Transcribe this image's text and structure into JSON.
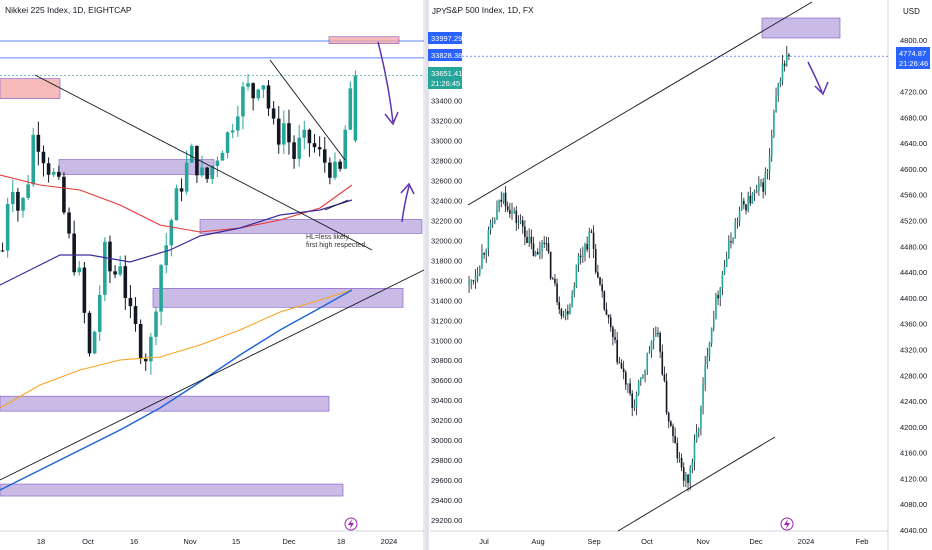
{
  "left_chart": {
    "title": "Nikkei 225 Index, 1D, EIGHTCAP",
    "currency": "JPY",
    "price_labels": [
      {
        "value": "33997.29",
        "color": "#2962ff"
      },
      {
        "value": "33828.38",
        "color": "#2962ff"
      },
      {
        "value": "33651.41",
        "color": "#26a69a"
      }
    ],
    "countdown": "21:26:45",
    "annotation": [
      "HL=less likely",
      "first high respected"
    ],
    "y_ticks": [
      "33400.00",
      "33200.00",
      "33000.00",
      "32800.00",
      "32600.00",
      "32400.00",
      "32200.00",
      "32000.00",
      "31800.00",
      "31600.00",
      "31400.00",
      "31200.00",
      "31000.00",
      "30800.00",
      "30600.00",
      "30400.00",
      "30200.00",
      "30000.00",
      "29800.00",
      "29600.00",
      "29400.00",
      "29200.00"
    ],
    "x_ticks": [
      "18",
      "Oct",
      "16",
      "Nov",
      "15",
      "Dec",
      "18",
      "2024"
    ]
  },
  "right_chart": {
    "title": "S&P 500 Index, 1D, FX",
    "currency": "USD",
    "price_label": {
      "value": "4774.87",
      "color": "#2962ff"
    },
    "countdown": "21:26:46",
    "y_ticks": [
      "4800.00",
      "4760.00",
      "4720.00",
      "4680.00",
      "4640.00",
      "4600.00",
      "4560.00",
      "4520.00",
      "4480.00",
      "4440.00",
      "4400.00",
      "4360.00",
      "4320.00",
      "4280.00",
      "4240.00",
      "4200.00",
      "4160.00",
      "4120.00",
      "4080.00",
      "4040.00"
    ],
    "x_ticks": [
      "Jul",
      "Aug",
      "Sep",
      "Oct",
      "Nov",
      "Dec",
      "2024",
      "Feb"
    ]
  },
  "chart_data": [
    {
      "type": "candlestick",
      "title": "Nikkei 225 Index, 1D, EIGHTCAP",
      "ylim": [
        29100,
        34050
      ],
      "close_path": [
        31900,
        32700,
        32300,
        32450,
        33100,
        32900,
        32700,
        32600,
        32200,
        31800,
        31600,
        30800,
        31200,
        31900,
        31600,
        31800,
        31300,
        31100,
        30800,
        31000,
        31700,
        32000,
        32400,
        32600,
        32900,
        32700,
        32600,
        32800,
        32950,
        33100,
        33350,
        33560,
        33450,
        33700,
        33300,
        33000,
        33200,
        32800,
        33000,
        33000,
        32900,
        32800,
        32700,
        32650,
        33300,
        33650
      ],
      "series": [
        {
          "name": "MA short",
          "color": "#e53935"
        },
        {
          "name": "MA mid",
          "color": "#3f2a9c"
        },
        {
          "name": "MA long",
          "color": "#f5a623"
        },
        {
          "name": "MA trend",
          "color": "#1e63d6"
        }
      ]
    },
    {
      "type": "candlestick",
      "title": "S&P 500 Index, 1D, FX",
      "ylim": [
        4030,
        4830
      ],
      "close_path": [
        4420,
        4440,
        4470,
        4500,
        4530,
        4560,
        4540,
        4520,
        4510,
        4480,
        4460,
        4500,
        4440,
        4400,
        4370,
        4400,
        4460,
        4480,
        4500,
        4420,
        4380,
        4340,
        4300,
        4270,
        4230,
        4260,
        4300,
        4340,
        4330,
        4230,
        4180,
        4140,
        4110,
        4160,
        4220,
        4320,
        4380,
        4430,
        4470,
        4510,
        4540,
        4550,
        4560,
        4570,
        4600,
        4700,
        4760,
        4774
      ]
    }
  ]
}
